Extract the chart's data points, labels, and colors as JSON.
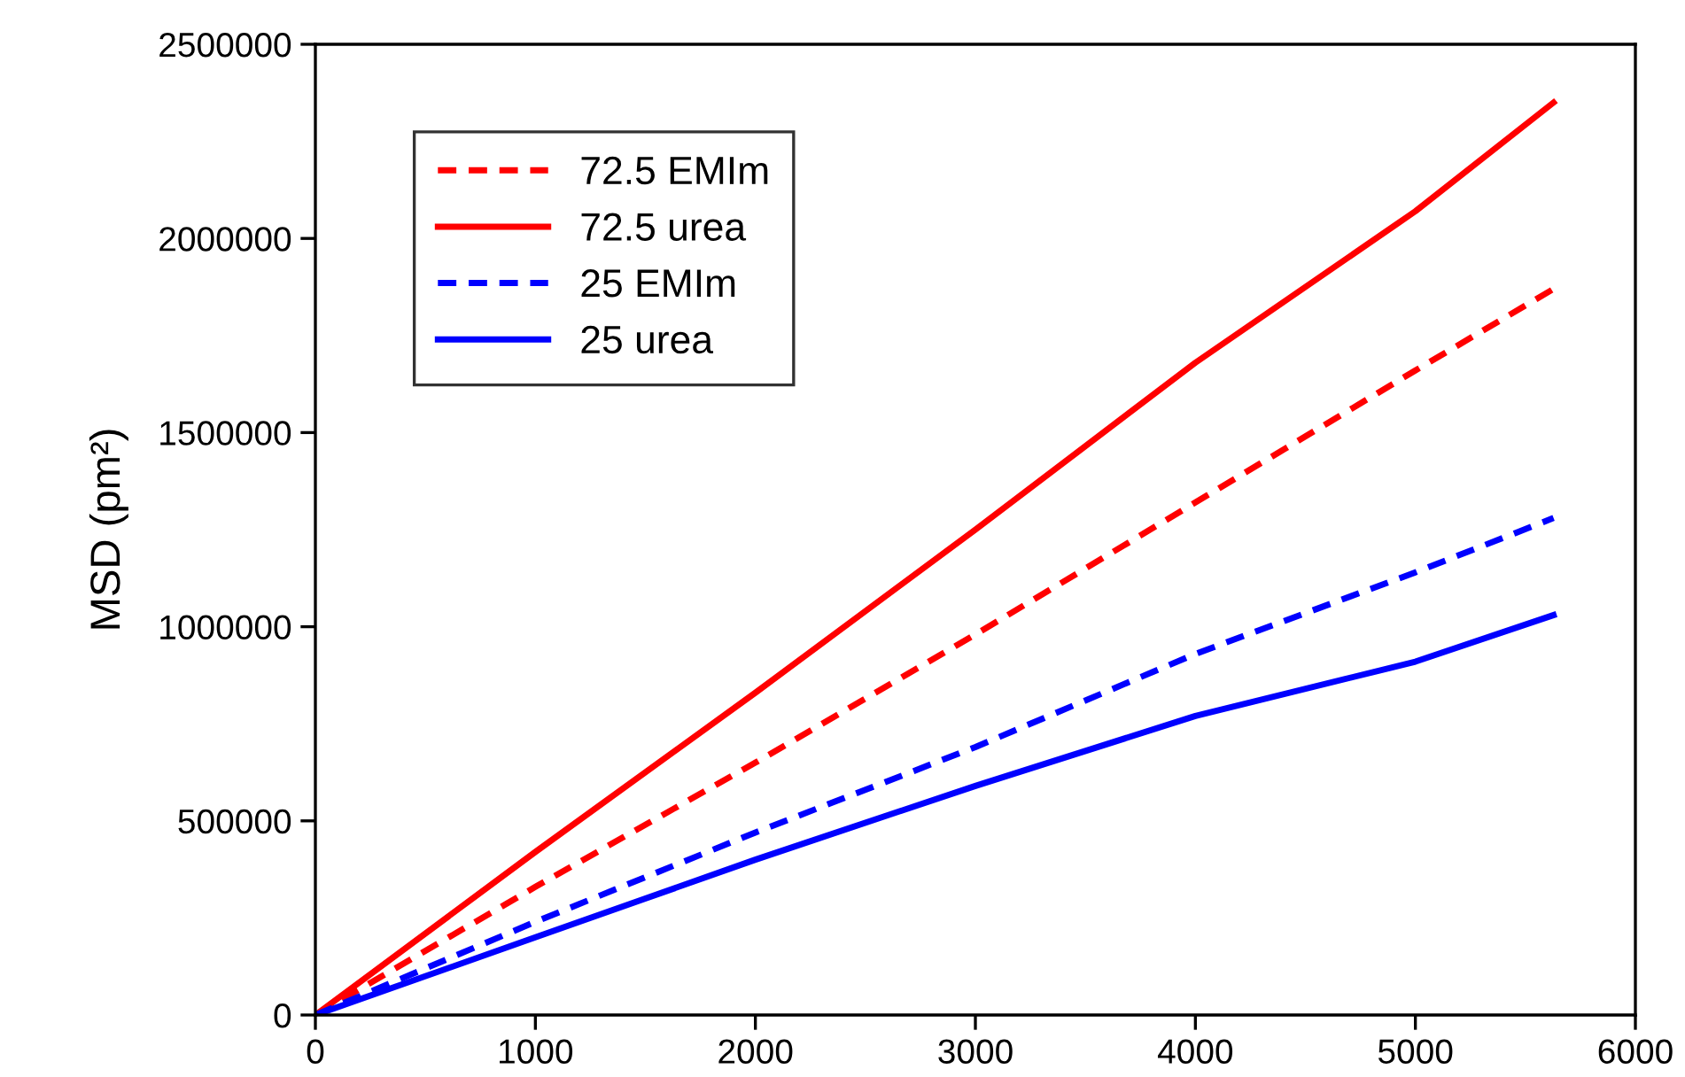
{
  "chart_data": {
    "type": "line",
    "ylabel": "MSD (pm²)",
    "xlim": [
      0,
      6000
    ],
    "xticks": [
      0,
      1000,
      2000,
      3000,
      4000,
      5000,
      6000
    ],
    "ylim": [
      0,
      2500000
    ],
    "yticks": [
      0,
      500000,
      1000000,
      1500000,
      2000000,
      2500000
    ],
    "grid": false,
    "legend": "top left",
    "marker": "none",
    "series": [
      {
        "name": "72.5 EMIm",
        "color": "#ff0000",
        "line_style": "dashed",
        "x": [
          0,
          1000,
          2000,
          3000,
          4000,
          5000,
          5628
        ],
        "values": [
          0,
          330000,
          650000,
          980000,
          1320000,
          1660000,
          1870000
        ]
      },
      {
        "name": "72.5 urea",
        "color": "#ff0000",
        "line_style": "solid",
        "x": [
          0,
          1000,
          2000,
          3000,
          4000,
          5000,
          5628
        ],
        "values": [
          0,
          420000,
          830000,
          1250000,
          1680000,
          2070000,
          2350000
        ]
      },
      {
        "name": "25 EMIm",
        "color": "#0000ff",
        "line_style": "dashed",
        "x": [
          0,
          1000,
          2000,
          3000,
          4000,
          5000,
          5628
        ],
        "values": [
          0,
          240000,
          470000,
          690000,
          930000,
          1140000,
          1280000
        ]
      },
      {
        "name": "25 urea",
        "color": "#0000ff",
        "line_style": "solid",
        "x": [
          0,
          1000,
          2000,
          3000,
          4000,
          5000,
          5628
        ],
        "values": [
          0,
          200000,
          400000,
          590000,
          770000,
          910000,
          1030000
        ]
      }
    ]
  }
}
